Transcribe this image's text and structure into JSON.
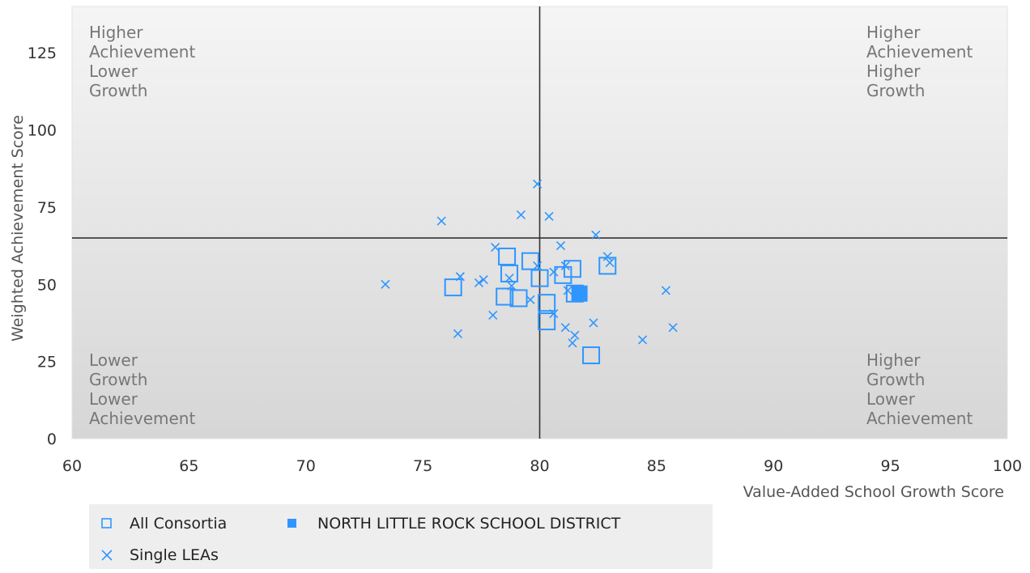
{
  "chart_data": {
    "type": "scatter",
    "xlabel": "Value-Added School Growth Score",
    "ylabel": "Weighted Achievement Score",
    "xlim": [
      60,
      100
    ],
    "ylim": [
      0,
      140
    ],
    "x_ticks": [
      "60",
      "65",
      "70",
      "75",
      "80",
      "85",
      "90",
      "95",
      "100"
    ],
    "y_ticks": [
      "0",
      "25",
      "50",
      "75",
      "100",
      "125"
    ],
    "reference_lines": {
      "x": 80,
      "y": 65
    },
    "quadrant_labels": {
      "top_left": [
        "Higher",
        "Achievement",
        "Lower",
        "Growth"
      ],
      "top_right": [
        "Higher",
        "Achievement",
        "Higher",
        "Growth"
      ],
      "bottom_left": [
        "Lower",
        "Growth",
        "Lower",
        "Achievement"
      ],
      "bottom_right": [
        "Higher",
        "Growth",
        "Lower",
        "Achievement"
      ]
    },
    "legend_position": "bottom-left",
    "colors": {
      "marker": "#2f96ff",
      "plot_bg_top": "#f5f5f5",
      "plot_bg_bottom": "#d6d6d6",
      "ref_line": "#333333"
    },
    "series": [
      {
        "name": "All Consortia",
        "marker": "open-square",
        "points": [
          [
            76.3,
            49
          ],
          [
            78.5,
            46
          ],
          [
            78.6,
            59
          ],
          [
            78.7,
            53.5
          ],
          [
            79.1,
            45.5
          ],
          [
            79.6,
            57.5
          ],
          [
            80.0,
            52
          ],
          [
            80.3,
            38
          ],
          [
            80.3,
            44
          ],
          [
            81.0,
            53
          ],
          [
            81.4,
            55
          ],
          [
            81.5,
            47
          ],
          [
            82.2,
            27
          ],
          [
            82.9,
            56
          ]
        ]
      },
      {
        "name": "NORTH LITTLE ROCK SCHOOL DISTRICT",
        "marker": "filled-square",
        "points": [
          [
            81.7,
            47
          ]
        ]
      },
      {
        "name": "Single LEAs",
        "marker": "x",
        "points": [
          [
            73.4,
            50
          ],
          [
            75.8,
            70.5
          ],
          [
            76.5,
            34
          ],
          [
            76.6,
            52.5
          ],
          [
            77.4,
            50.5
          ],
          [
            77.6,
            51.5
          ],
          [
            78.0,
            40
          ],
          [
            78.1,
            62
          ],
          [
            78.7,
            52
          ],
          [
            78.8,
            49.5
          ],
          [
            79.2,
            72.5
          ],
          [
            79.6,
            45
          ],
          [
            79.9,
            82.5
          ],
          [
            79.9,
            56
          ],
          [
            80.4,
            72
          ],
          [
            80.6,
            40.5
          ],
          [
            80.6,
            54
          ],
          [
            80.9,
            62.5
          ],
          [
            81.1,
            36
          ],
          [
            81.1,
            56
          ],
          [
            81.2,
            48
          ],
          [
            81.4,
            31
          ],
          [
            81.5,
            33.5
          ],
          [
            82.3,
            37.5
          ],
          [
            82.4,
            66
          ],
          [
            82.9,
            59
          ],
          [
            83.0,
            57
          ],
          [
            84.4,
            32
          ],
          [
            85.4,
            48
          ],
          [
            85.7,
            36
          ]
        ]
      }
    ]
  }
}
